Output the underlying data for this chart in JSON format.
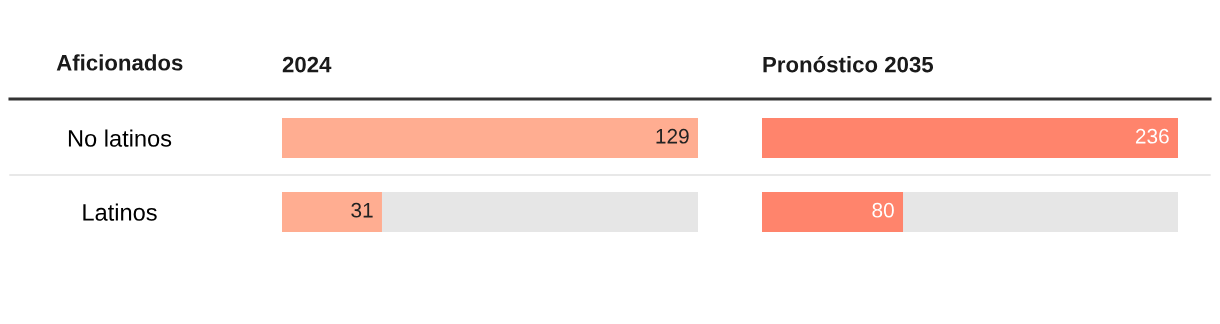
{
  "chart_data": [
    {
      "type": "bar",
      "orientation": "horizontal",
      "title": "2024",
      "ylabel": "Aficionados",
      "categories": [
        "No latinos",
        "Latinos"
      ],
      "values": [
        129,
        31
      ],
      "color": "#ffad91",
      "data_labels": true,
      "tick_labels": "y",
      "legend": false,
      "grid": false
    },
    {
      "type": "bar",
      "orientation": "horizontal",
      "title": "Pronóstico 2035",
      "categories": [
        null,
        null
      ],
      "values": [
        236,
        80
      ],
      "color": "#ff846c",
      "data_labels": true,
      "tick_labels": false,
      "legend": false,
      "grid": false
    }
  ]
}
